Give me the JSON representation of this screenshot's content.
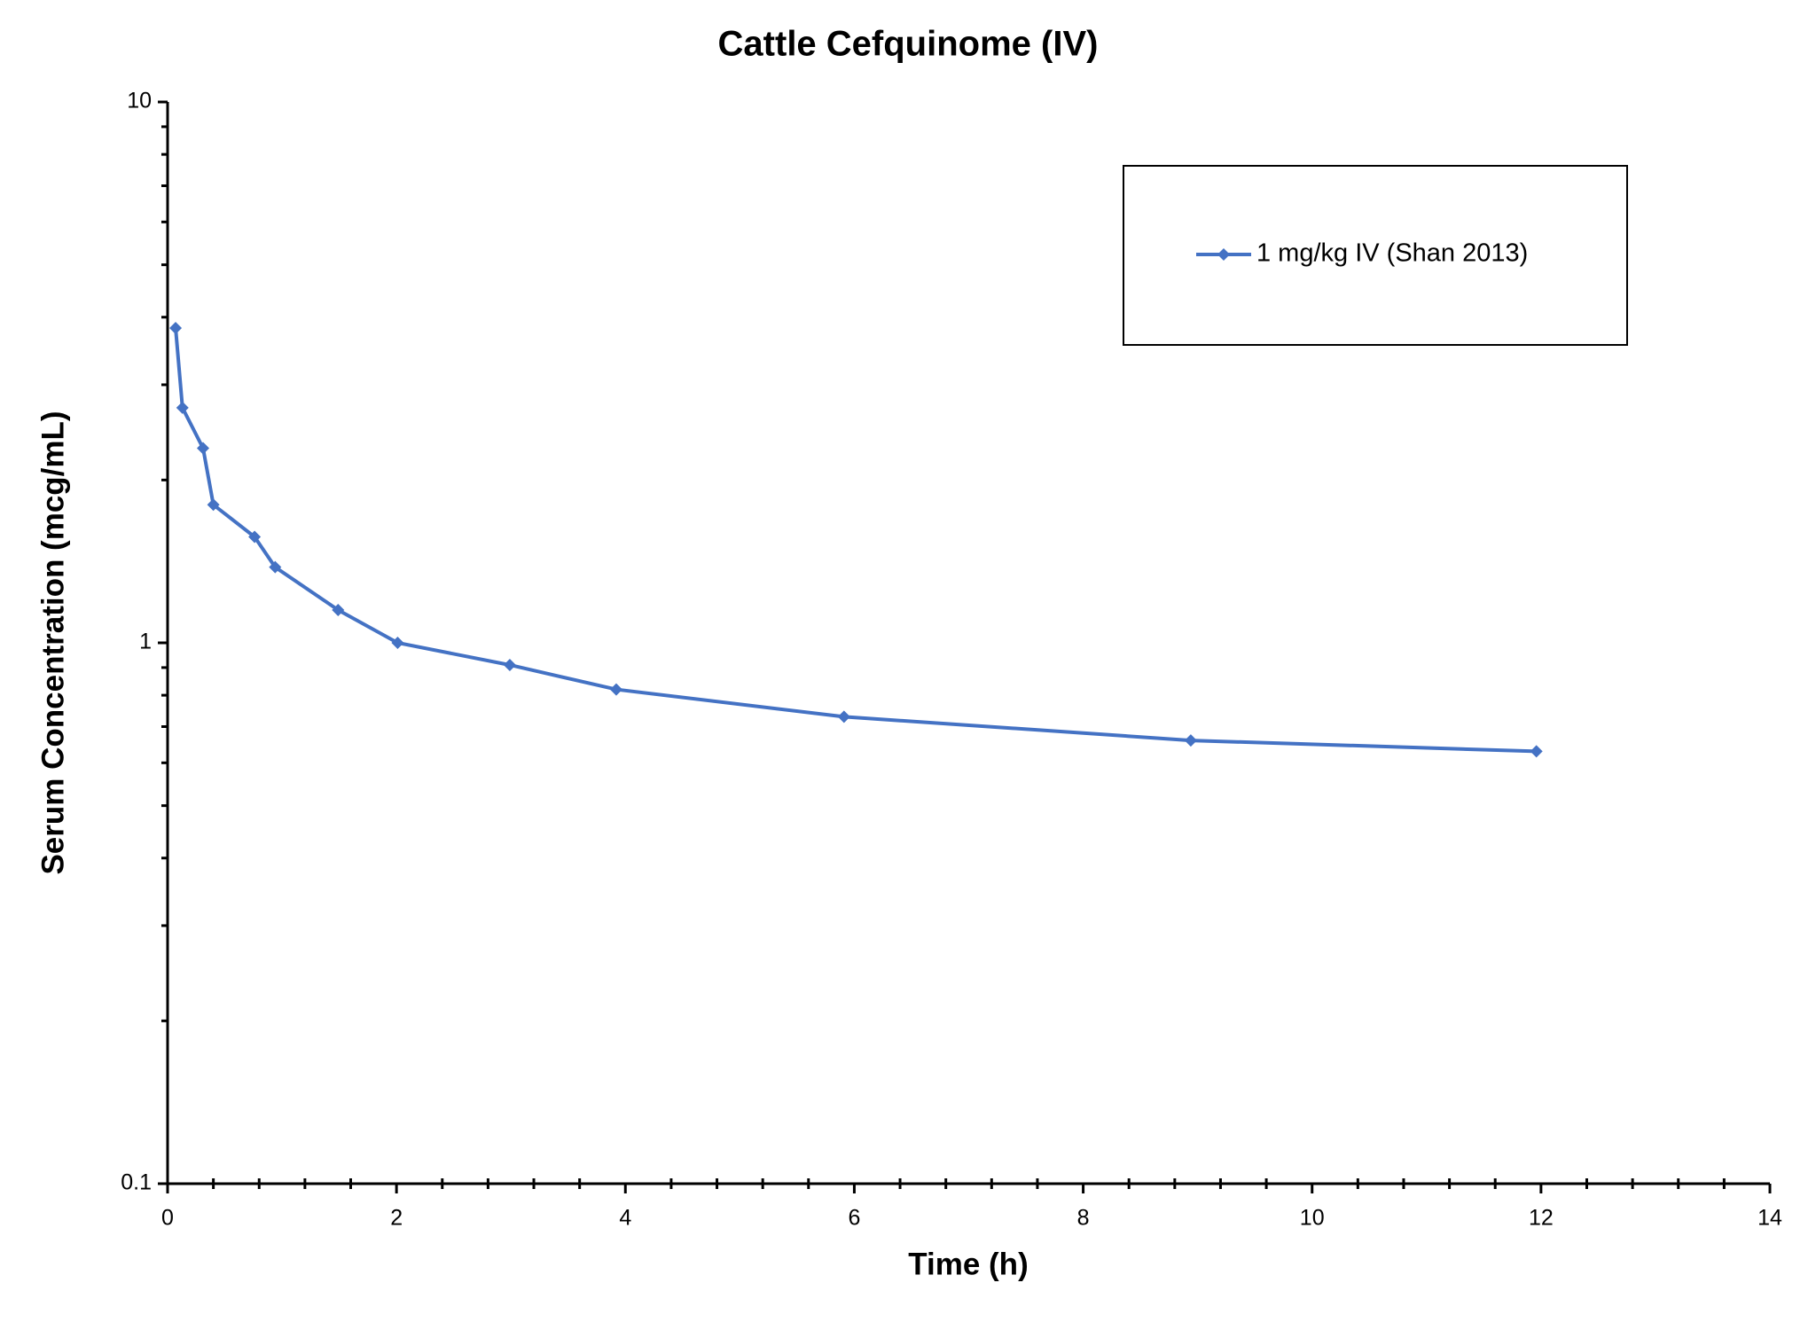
{
  "chart_data": {
    "type": "line",
    "title": "Cattle Cefquinome (IV)",
    "x_label": "Time (h)",
    "y_label": "Serum Concentration (mcg/mL)",
    "xlim": [
      0,
      14
    ],
    "xticks": [
      0,
      2,
      4,
      6,
      8,
      10,
      12,
      14
    ],
    "ylim": [
      0.1,
      10
    ],
    "yticks": [
      0.1,
      1,
      10
    ],
    "y_log": true,
    "minor_ticks": true,
    "grid": false,
    "legend": "upper right",
    "series": [
      {
        "name": "1 mg/kg IV (Shan 2013)",
        "color": "#4472c4",
        "x": [
          0.07,
          0.13,
          0.31,
          0.4,
          0.76,
          0.94,
          1.49,
          2.01,
          2.99,
          3.92,
          5.91,
          8.94,
          11.96
        ],
        "values": [
          3.82,
          2.72,
          2.29,
          1.8,
          1.57,
          1.38,
          1.15,
          1.0,
          0.91,
          0.82,
          0.73,
          0.66,
          0.63
        ]
      }
    ]
  }
}
